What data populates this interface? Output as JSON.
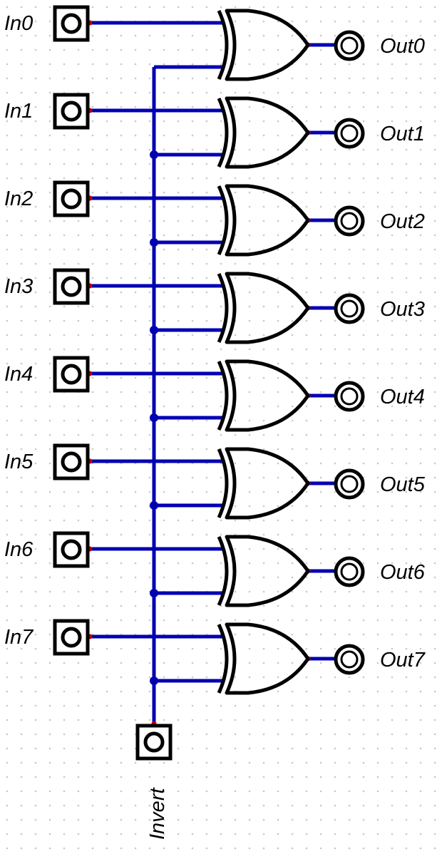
{
  "inputs": [
    {
      "label": "In0"
    },
    {
      "label": "In1"
    },
    {
      "label": "In2"
    },
    {
      "label": "In3"
    },
    {
      "label": "In4"
    },
    {
      "label": "In5"
    },
    {
      "label": "In6"
    },
    {
      "label": "In7"
    }
  ],
  "outputs": [
    {
      "label": "Out0"
    },
    {
      "label": "Out1"
    },
    {
      "label": "Out2"
    },
    {
      "label": "Out3"
    },
    {
      "label": "Out4"
    },
    {
      "label": "Out5"
    },
    {
      "label": "Out6"
    },
    {
      "label": "Out7"
    }
  ],
  "gate_type": "XOR",
  "control": {
    "label": "Invert"
  },
  "colors": {
    "wire": "#0000b3",
    "endpoint": "#b30000",
    "gate": "#000000",
    "grid_dot": "#c8c8c8",
    "background": "#ffffff"
  }
}
